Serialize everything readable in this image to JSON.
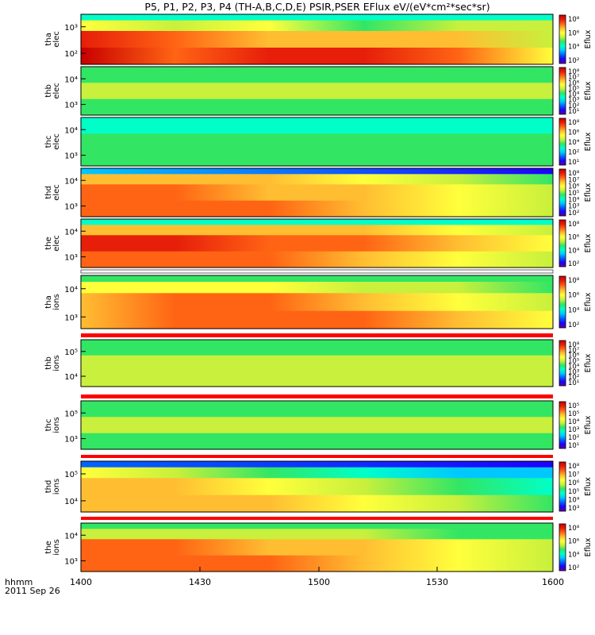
{
  "title": "P5, P1, P2, P3, P4 (TH-A,B,C,D,E) PSIR,PSER EFlux eV/(eV*cm²*sec*sr)",
  "colors": {
    "colormap": [
      "#5a00a0",
      "#1e00ff",
      "#0064ff",
      "#00c8ff",
      "#00ffc8",
      "#32e664",
      "#c8f03c",
      "#ffff3c",
      "#ffbe32",
      "#ff6414",
      "#e61e0a",
      "#c80000"
    ],
    "accent_line": "#ff0000"
  },
  "chart_data": {
    "type": "heatmap",
    "xlabel": "hhmm",
    "date_label": "2011 Sep 26",
    "x_ticks": [
      "1400",
      "1430",
      "1500",
      "1530",
      "1600"
    ],
    "xlim": [
      "14:00",
      "16:00"
    ],
    "colorbar_label": "Eflux",
    "panels": [
      {
        "id": "tha-elec",
        "ylabel": [
          "tha",
          "elec"
        ],
        "ytick_labels": [
          "10³",
          "10²"
        ],
        "cb_ticks": [
          "10⁸",
          "10⁶",
          "10⁴",
          "10²"
        ],
        "levels": [
          [
            7,
            6,
            7,
            5,
            6,
            6
          ],
          [
            10,
            9,
            8,
            8,
            8,
            6
          ],
          [
            11,
            9,
            10,
            10,
            9,
            7
          ]
        ],
        "top_band": [
          4,
          4
        ]
      },
      {
        "id": "thb-elec",
        "ylabel": [
          "thb",
          "elec"
        ],
        "ytick_labels": [
          "10⁴",
          "10³"
        ],
        "cb_ticks": [
          "10⁸",
          "10⁷",
          "10⁶",
          "10⁵",
          "10⁴",
          "10³",
          "10²",
          "10¹"
        ],
        "levels": [
          [
            5,
            5,
            5,
            5,
            5,
            5
          ],
          [
            6,
            6,
            6,
            6,
            6,
            6
          ],
          [
            5,
            5,
            5,
            5,
            5,
            5
          ]
        ],
        "top_band": [
          5,
          5
        ]
      },
      {
        "id": "thc-elec",
        "ylabel": [
          "thc",
          "elec"
        ],
        "ytick_labels": [
          "10⁴",
          "10³"
        ],
        "cb_ticks": [
          "10⁸",
          "10⁶",
          "10⁴",
          "10²",
          "10¹"
        ],
        "levels": [
          [
            4,
            4,
            4,
            4,
            4,
            4
          ],
          [
            5,
            5,
            5,
            5,
            5,
            5
          ],
          [
            5,
            5,
            5,
            5,
            5,
            5
          ]
        ],
        "top_band": [
          4,
          4
        ]
      },
      {
        "id": "thd-elec",
        "ylabel": [
          "thd",
          "elec"
        ],
        "ytick_labels": [
          "10⁴",
          "10³"
        ],
        "cb_ticks": [
          "10⁸",
          "10⁷",
          "10⁶",
          "10⁵",
          "10⁴",
          "10³",
          "10²"
        ],
        "levels": [
          [
            8,
            8,
            8,
            7,
            6,
            5
          ],
          [
            9,
            9,
            8,
            8,
            7,
            6
          ],
          [
            9,
            9,
            9,
            8,
            7,
            6
          ]
        ],
        "top_band": [
          3,
          1
        ]
      },
      {
        "id": "the-elec",
        "ylabel": [
          "the",
          "elec"
        ],
        "ytick_labels": [
          "10⁴",
          "10³"
        ],
        "cb_ticks": [
          "10⁸",
          "10⁶",
          "10⁴",
          "10²"
        ],
        "levels": [
          [
            8,
            8,
            8,
            8,
            7,
            6
          ],
          [
            10,
            10,
            9,
            9,
            8,
            7
          ],
          [
            9,
            9,
            9,
            8,
            7,
            6
          ]
        ],
        "top_band": [
          4,
          4
        ]
      },
      {
        "id": "tha-ions",
        "ylabel": [
          "tha",
          "ions"
        ],
        "ytick_labels": [
          "10⁴",
          "10³"
        ],
        "cb_ticks": [
          "10⁸",
          "10⁶",
          "10⁴",
          "10²"
        ],
        "levels": [
          [
            7,
            7,
            7,
            6,
            6,
            5
          ],
          [
            8,
            9,
            9,
            8,
            7,
            6
          ],
          [
            8,
            9,
            9,
            9,
            8,
            7
          ]
        ],
        "top_band": [
          5,
          5
        ]
      },
      {
        "id": "thb-ions",
        "ylabel": [
          "thb",
          "ions"
        ],
        "ytick_labels": [
          "10⁵",
          "10⁴"
        ],
        "cb_ticks": [
          "10⁸",
          "10⁷",
          "10⁶",
          "10⁵",
          "10⁴",
          "10³",
          "10²",
          "10¹"
        ],
        "levels": [
          [
            5,
            5,
            5,
            5,
            5,
            5
          ],
          [
            6,
            6,
            6,
            6,
            6,
            6
          ],
          [
            6,
            6,
            6,
            6,
            6,
            6
          ]
        ],
        "top_band": [
          5,
          5
        ]
      },
      {
        "id": "thc-ions",
        "ylabel": [
          "thc",
          "ions"
        ],
        "ytick_labels": [
          "10⁵",
          "10³"
        ],
        "cb_ticks": [
          "10⁵",
          "10⁵",
          "10⁴",
          "10³",
          "10²",
          "10¹"
        ],
        "levels": [
          [
            5,
            5,
            5,
            5,
            5,
            5
          ],
          [
            6,
            6,
            6,
            6,
            6,
            6
          ],
          [
            5,
            5,
            5,
            5,
            5,
            5
          ]
        ],
        "top_band": [
          5,
          5
        ]
      },
      {
        "id": "thd-ions",
        "ylabel": [
          "thd",
          "ions"
        ],
        "ytick_labels": [
          "10⁵",
          "10⁴"
        ],
        "cb_ticks": [
          "10⁸",
          "10⁷",
          "10⁶",
          "10⁵",
          "10⁴",
          "10³"
        ],
        "levels": [
          [
            7,
            6,
            5,
            4,
            3,
            3
          ],
          [
            8,
            8,
            7,
            6,
            5,
            4
          ],
          [
            8,
            8,
            8,
            7,
            6,
            5
          ]
        ],
        "top_band": [
          2,
          1
        ]
      },
      {
        "id": "the-ions",
        "ylabel": [
          "the",
          "ions"
        ],
        "ytick_labels": [
          "10⁴",
          "10³"
        ],
        "cb_ticks": [
          "10⁸",
          "10⁶",
          "10⁴",
          "10²"
        ],
        "levels": [
          [
            6,
            6,
            6,
            6,
            5,
            5
          ],
          [
            9,
            9,
            8,
            8,
            7,
            6
          ],
          [
            9,
            9,
            9,
            8,
            7,
            6
          ]
        ],
        "top_band": [
          5,
          5
        ]
      }
    ]
  }
}
